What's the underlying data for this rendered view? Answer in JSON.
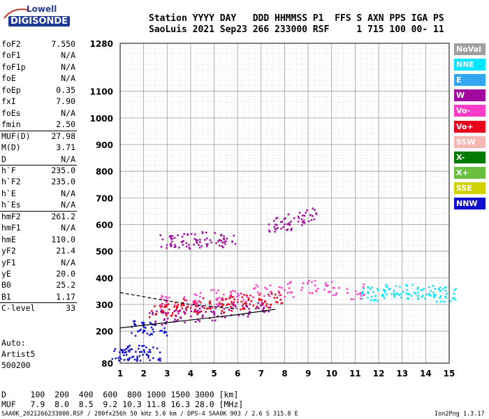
{
  "logo": {
    "line1": "Lowell",
    "line2": "DIGISONDE"
  },
  "header": {
    "line1": "Station YYYY DAY   DDD HHMMSS P1  FFS S AXN PPS IGA PS",
    "line2": "SaoLuis 2021 Sep23 266 233000 RSF     1 715 100 00- 11"
  },
  "params": [
    {
      "k": "foF2",
      "v": "7.550"
    },
    {
      "k": "foF1",
      "v": "N/A"
    },
    {
      "k": "foF1p",
      "v": "N/A"
    },
    {
      "k": "foE",
      "v": "N/A"
    },
    {
      "k": "foEp",
      "v": "0.35"
    },
    {
      "k": "fxI",
      "v": "7.90"
    },
    {
      "k": "foEs",
      "v": "N/A"
    },
    {
      "k": "fmin",
      "v": "2.50"
    },
    {
      "k": "MUF(D)",
      "v": "27.98"
    },
    {
      "k": "M(D)",
      "v": "3.71"
    },
    {
      "k": "D",
      "v": "N/A"
    },
    {
      "k": "h`F",
      "v": "235.0"
    },
    {
      "k": "h`F2",
      "v": "235.0"
    },
    {
      "k": "h`E",
      "v": "N/A"
    },
    {
      "k": "h`Es",
      "v": "N/A"
    },
    {
      "k": "hmF2",
      "v": "261.2"
    },
    {
      "k": "hmF1",
      "v": "N/A"
    },
    {
      "k": "hmE",
      "v": "110.0"
    },
    {
      "k": "yF2",
      "v": "21.4"
    },
    {
      "k": "yF1",
      "v": "N/A"
    },
    {
      "k": "yE",
      "v": "20.0"
    },
    {
      "k": "B0",
      "v": "25.2"
    },
    {
      "k": "B1",
      "v": "1.17"
    },
    {
      "k": "C-level",
      "v": "33"
    }
  ],
  "auto": {
    "line1": "Auto:",
    "line2": "Artist5",
    "line3": "500200"
  },
  "legend": [
    {
      "label": "NoVal",
      "bg": "#a0a0a0",
      "fg": "#ffffff"
    },
    {
      "label": "NNE",
      "bg": "#00e5ff",
      "fg": "#ffffff"
    },
    {
      "label": "E",
      "bg": "#33a6f0",
      "fg": "#ffffff"
    },
    {
      "label": "W",
      "bg": "#a0089e",
      "fg": "#ffffff"
    },
    {
      "label": "Vo-",
      "bg": "#ff3cc8",
      "fg": "#ffffff"
    },
    {
      "label": "Vo+",
      "bg": "#e8001c",
      "fg": "#ffffff"
    },
    {
      "label": "SSW",
      "bg": "#f5b7b1",
      "fg": "#ffffff"
    },
    {
      "label": "X-",
      "bg": "#007a00",
      "fg": "#ffffff"
    },
    {
      "label": "X+",
      "bg": "#6abf40",
      "fg": "#ffffff"
    },
    {
      "label": "SSE",
      "bg": "#d2d200",
      "fg": "#ffffff"
    },
    {
      "label": "NNW",
      "bg": "#1010d0",
      "fg": "#ffffff"
    }
  ],
  "bottom": {
    "line1": "D     100  200  400  600  800 1000 1500 3000 [km]",
    "line2": "MUF   7.9  8.0  8.5  9.2 10.3 11.8 16.3 28.0 [MHz]",
    "footer": "SAA0K_2021266233000.RSF / 280fx256h 50 kHz 5.0 km / DPS-4 SAA0K 903 / 2.6 S 315.8 E",
    "version": "Ion2Png 1.3.17"
  },
  "chart_data": {
    "type": "scatter",
    "title": "",
    "xlabel": "",
    "ylabel": "",
    "xlim": [
      1,
      15
    ],
    "ylim": [
      80,
      1280
    ],
    "x_ticks": [
      "1",
      "2",
      "3",
      "4",
      "5",
      "6",
      "7",
      "8",
      "9",
      "10",
      "11",
      "12",
      "13",
      "14",
      "15"
    ],
    "y_ticks": [
      {
        "v": 80,
        "label": "80"
      },
      {
        "v": 200,
        "label": "200"
      },
      {
        "v": 300,
        "label": "300"
      },
      {
        "v": 400,
        "label": "400"
      },
      {
        "v": 500,
        "label": "500"
      },
      {
        "v": 600,
        "label": "600"
      },
      {
        "v": 700,
        "label": "700"
      },
      {
        "v": 800,
        "label": "800"
      },
      {
        "v": 900,
        "label": "900"
      },
      {
        "v": 1000,
        "label": "1000"
      },
      {
        "v": 1100,
        "label": "1100"
      },
      {
        "v": 1280,
        "label": "1280"
      }
    ],
    "grid": true,
    "series": [
      {
        "class": "Vo+",
        "x": [
          2.6,
          3.0,
          3.5,
          4.0,
          4.5,
          5.0,
          5.5,
          6.0,
          6.5,
          7.0,
          7.5
        ],
        "y": [
          280,
          285,
          290,
          295,
          300,
          300,
          305,
          310,
          315,
          320,
          325
        ]
      },
      {
        "class": "W",
        "x": [
          2.6,
          3.2,
          4.0,
          4.8,
          5.5,
          6.2,
          7.0
        ],
        "y": [
          250,
          255,
          262,
          270,
          278,
          285,
          295
        ]
      },
      {
        "class": "Vo-",
        "x": [
          3.0,
          4.0,
          5.0,
          6.0,
          7.0,
          8.0,
          9.0,
          10.0,
          11.0
        ],
        "y": [
          310,
          320,
          330,
          340,
          350,
          360,
          365,
          360,
          350
        ]
      },
      {
        "class": "NNE",
        "x": [
          11.6,
          12.0,
          12.5,
          13.0,
          13.5,
          14.0,
          14.5,
          14.9
        ],
        "y": [
          340,
          345,
          350,
          345,
          350,
          345,
          340,
          335
        ]
      },
      {
        "class": "W",
        "x": [
          3.0,
          3.5,
          4.0,
          4.5,
          5.0,
          5.5
        ],
        "y": [
          540,
          545,
          540,
          548,
          545,
          540
        ]
      },
      {
        "class": "W",
        "x": [
          7.6,
          8.0,
          8.5,
          9.0
        ],
        "y": [
          600,
          610,
          620,
          640
        ]
      },
      {
        "class": "NNW",
        "x": [
          1.0,
          1.3,
          1.6,
          2.0,
          2.3
        ],
        "y": [
          120,
          120,
          120,
          120,
          120
        ]
      },
      {
        "class": "NNW",
        "x": [
          1.8,
          2.2,
          2.6
        ],
        "y": [
          213,
          213,
          213
        ]
      }
    ],
    "curves": [
      {
        "name": "",
        "points": [
          [
            1,
            212
          ],
          [
            3,
            232
          ],
          [
            6,
            262
          ],
          [
            7.6,
            282
          ]
        ]
      },
      {
        "name": "",
        "points": [
          [
            1,
            345
          ],
          [
            2.6,
            320
          ],
          [
            4,
            300
          ],
          [
            6,
            284
          ]
        ],
        "dashed": true
      }
    ]
  }
}
